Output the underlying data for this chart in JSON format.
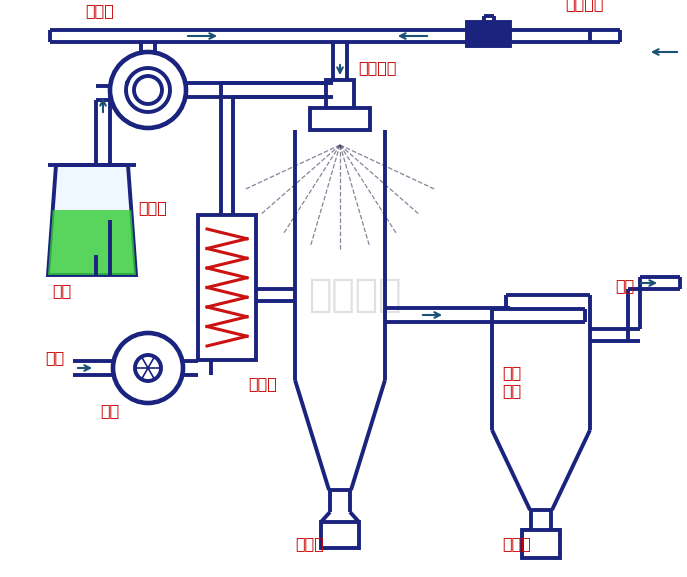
{
  "bg_color": "#ffffff",
  "line_color": "#1a237e",
  "line_width": 2.8,
  "arrow_color": "#1a5276",
  "label_color": "#cc0000",
  "watermark": "上海欧蒙",
  "watermark_color": "#bbbbbb",
  "labels": {
    "feed_pump": "进料泵",
    "compressed_air": "压缩空气",
    "nozzle": "雾化喷头",
    "raw_material": "原料",
    "heater": "加热器",
    "dryer": "干燥瓶",
    "fan": "风机",
    "air": "空气",
    "cyclone": "旋风\n分离",
    "exhaust": "尾气",
    "collector1": "收料瓶",
    "collector2": "收料瓶"
  }
}
